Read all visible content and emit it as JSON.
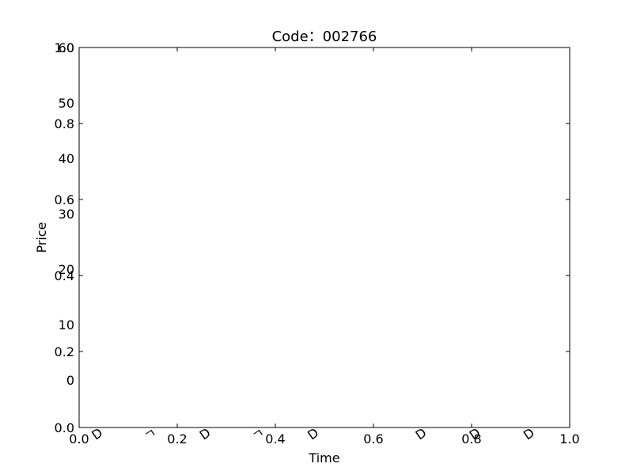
{
  "chart_data": {
    "type": "line",
    "title": "Code：002766",
    "xlabel": "Time",
    "ylabel": "Price",
    "xlim": [
      0.0,
      1.0
    ],
    "ylim": [
      0.0,
      1.0
    ],
    "x_ticks": [
      0.0,
      0.2,
      0.4,
      0.6,
      0.8,
      1.0
    ],
    "x_tick_labels": [
      "0.0",
      "0.2",
      "0.4",
      "0.6",
      "0.8",
      "1.0"
    ],
    "y_ticks": [
      0.0,
      0.2,
      0.4,
      0.6,
      0.8,
      1.0
    ],
    "y_tick_labels": [
      "0.0",
      "0.2",
      "0.4",
      "0.6",
      "0.8",
      "1.0"
    ],
    "y2_ticks": [
      0,
      10,
      20,
      30,
      40,
      50,
      60
    ],
    "y2_tick_labels": [
      "0",
      "10",
      "20",
      "30",
      "40",
      "50",
      "60"
    ],
    "y2lim": [
      -8.6,
      60
    ],
    "x_category_labels": [
      "D",
      "ㄱ",
      "D",
      "ㄱ",
      "D",
      "D",
      "D",
      "D"
    ],
    "x_category_positions": [
      0.05,
      0.16,
      0.27,
      0.38,
      0.49,
      0.71,
      0.82,
      0.93
    ],
    "grid": false,
    "series": []
  }
}
